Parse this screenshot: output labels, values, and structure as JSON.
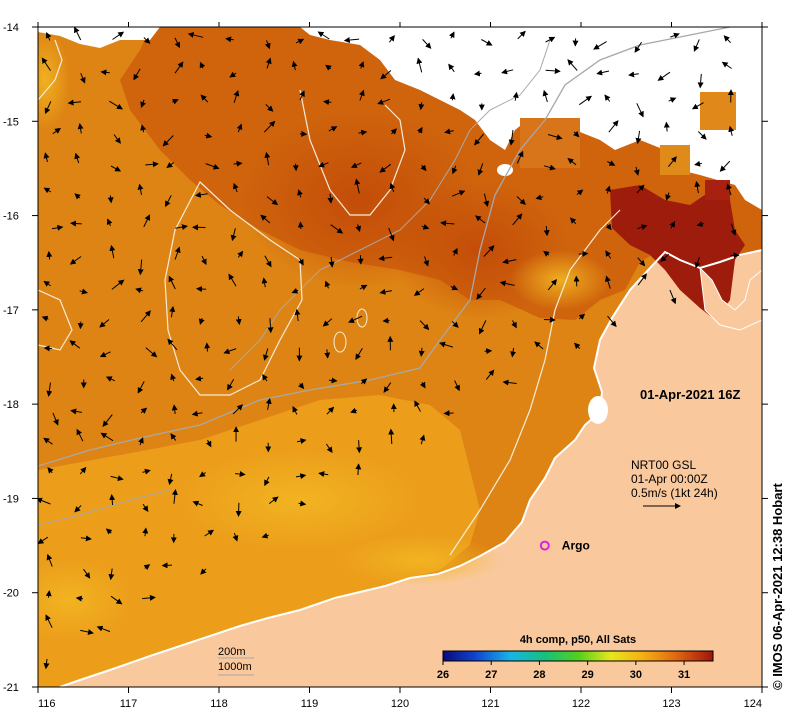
{
  "map": {
    "timestamp": "01-Apr-2021 16Z",
    "lon_ticks": [
      "116",
      "117",
      "118",
      "119",
      "120",
      "121",
      "122",
      "123",
      "124"
    ],
    "lat_ticks": [
      "-14",
      "-15",
      "-16",
      "-17",
      "-18",
      "-19",
      "-20",
      "-21"
    ],
    "lon_range": [
      116,
      124
    ],
    "lat_range": [
      -21,
      -14
    ],
    "current_legend": {
      "line1": "NRT00 GSL",
      "line2": "01-Apr 00:00Z",
      "line3": "0.5m/s (1kt 24h)"
    },
    "argo_label": "Argo",
    "argo_position": {
      "lon": 121.6,
      "lat": -19.5
    },
    "depth_legend": {
      "shallow": "200m",
      "deep": "1000m"
    },
    "colorbar": {
      "title": "4h comp, p50, All Sats",
      "ticks": [
        "26",
        "27",
        "28",
        "29",
        "30",
        "31"
      ],
      "range": [
        26,
        31.6
      ]
    },
    "credit": "© IMOS 06-Apr-2021 12:38 Hobart",
    "colors": {
      "land": "#f9c89c",
      "cloud": "#ffffff",
      "sst_warm": "#c9540a",
      "sst_mid": "#e38a12",
      "sst_cool": "#f0b21e",
      "sst_hot": "#9e1c0c",
      "argo": "#e020e0"
    }
  }
}
